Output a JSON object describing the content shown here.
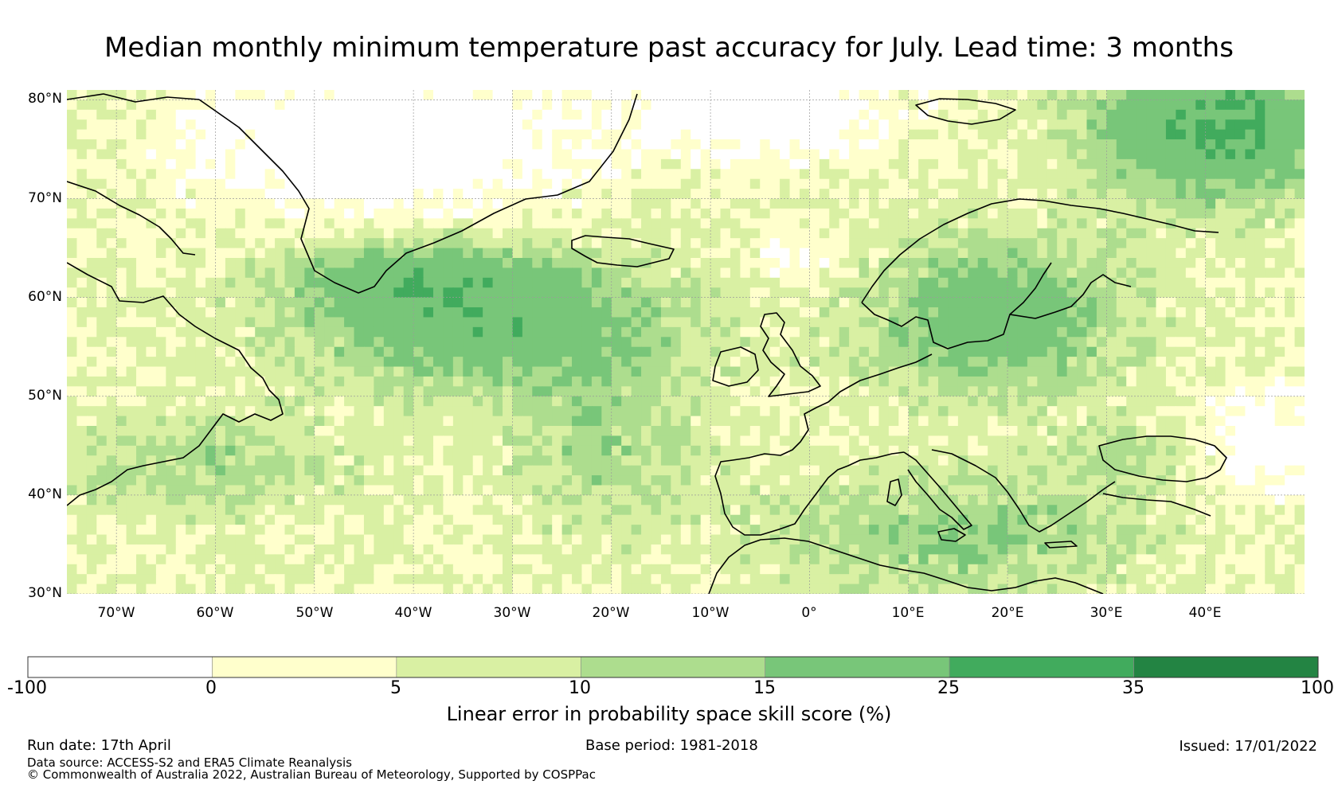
{
  "title": "Median monthly minimum temperature past accuracy for July. Lead time: 3 months",
  "map": {
    "lat_labels": [
      "80°N",
      "70°N",
      "60°N",
      "50°N",
      "40°N",
      "30°N"
    ],
    "lon_labels": [
      "70°W",
      "60°W",
      "50°W",
      "40°W",
      "30°W",
      "20°W",
      "10°W",
      "0°",
      "10°E",
      "20°E",
      "30°E",
      "40°E"
    ],
    "extent": {
      "lon_min": -75,
      "lon_max": 50,
      "lat_min": 30,
      "lat_max": 81
    },
    "colors": {
      "ocean_grid": "#9a9a9a",
      "coastline": "#000000"
    }
  },
  "colorbar": {
    "label": "Linear error in probability space skill score (%)",
    "ticks": [
      "-100",
      "0",
      "5",
      "10",
      "15",
      "25",
      "35",
      "100"
    ],
    "bins": [
      {
        "from": "-100",
        "to": "0",
        "color": "#ffffff"
      },
      {
        "from": "0",
        "to": "5",
        "color": "#ffffcc"
      },
      {
        "from": "5",
        "to": "10",
        "color": "#d9f0a3"
      },
      {
        "from": "10",
        "to": "15",
        "color": "#addd8e"
      },
      {
        "from": "15",
        "to": "25",
        "color": "#78c679"
      },
      {
        "from": "25",
        "to": "35",
        "color": "#41ab5d"
      },
      {
        "from": "35",
        "to": "100",
        "color": "#238443"
      }
    ]
  },
  "footer": {
    "run_date": "Run date: 17th April",
    "base_period": "Base period: 1981-2018",
    "issued": "Issued: 17/01/2022",
    "data_source": "Data source: ACCESS-S2 and ERA5 Climate Reanalysis",
    "copyright": "© Commonwealth of Australia 2022, Australian Bureau of Meteorology, Supported by COSPPac"
  }
}
